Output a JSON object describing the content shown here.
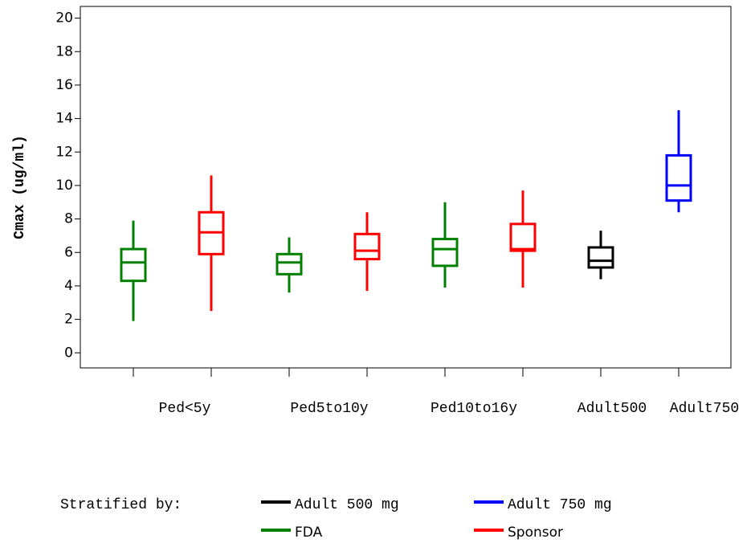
{
  "chart_data": {
    "type": "box",
    "y_label": "Cmax (ug/ml)",
    "categories": [
      null,
      null,
      null,
      null,
      null,
      null,
      null,
      null
    ],
    "group_labels": [
      "Ped<5y",
      "Ped5to10y",
      "Ped10to16y",
      "Adult500",
      "Adult750"
    ],
    "ylim": [
      -0.9,
      20.7
    ],
    "yticks": [
      0,
      2,
      4,
      6,
      8,
      10,
      12,
      14,
      16,
      18,
      20
    ],
    "legend_title": "Stratified by:",
    "series": [
      {
        "name": "Adult 500 mg",
        "color": "#000000",
        "min": [
          null,
          null,
          null,
          null,
          null,
          null,
          4.4,
          null
        ],
        "q1": [
          null,
          null,
          null,
          null,
          null,
          null,
          5.1,
          null
        ],
        "median": [
          null,
          null,
          null,
          null,
          null,
          null,
          5.5,
          null
        ],
        "q3": [
          null,
          null,
          null,
          null,
          null,
          null,
          6.3,
          null
        ],
        "max": [
          null,
          null,
          null,
          null,
          null,
          null,
          7.3,
          null
        ]
      },
      {
        "name": "Adult 750 mg",
        "color": "#0000ff",
        "min": [
          null,
          null,
          null,
          null,
          null,
          null,
          null,
          8.4
        ],
        "q1": [
          null,
          null,
          null,
          null,
          null,
          null,
          null,
          9.1
        ],
        "median": [
          null,
          null,
          null,
          null,
          null,
          null,
          null,
          10.0
        ],
        "q3": [
          null,
          null,
          null,
          null,
          null,
          null,
          null,
          11.8
        ],
        "max": [
          null,
          null,
          null,
          null,
          null,
          null,
          null,
          14.5
        ]
      },
      {
        "name": "FDA",
        "color": "#008000",
        "min": [
          1.9,
          null,
          3.6,
          null,
          3.9,
          null,
          null,
          null
        ],
        "q1": [
          4.3,
          null,
          4.7,
          null,
          5.2,
          null,
          null,
          null
        ],
        "median": [
          5.4,
          null,
          5.4,
          null,
          6.2,
          null,
          null,
          null
        ],
        "q3": [
          6.2,
          null,
          5.9,
          null,
          6.8,
          null,
          null,
          null
        ],
        "max": [
          7.9,
          null,
          6.9,
          null,
          9.0,
          null,
          null,
          null
        ]
      },
      {
        "name": "Sponsor",
        "color": "#ff0000",
        "min": [
          null,
          2.5,
          null,
          3.7,
          null,
          3.9,
          null,
          null
        ],
        "q1": [
          null,
          5.9,
          null,
          5.6,
          null,
          6.1,
          null,
          null
        ],
        "median": [
          null,
          7.2,
          null,
          6.1,
          null,
          6.2,
          null,
          null
        ],
        "q3": [
          null,
          8.4,
          null,
          7.1,
          null,
          7.7,
          null,
          null
        ],
        "max": [
          null,
          10.6,
          null,
          8.4,
          null,
          9.7,
          null,
          null
        ]
      }
    ]
  }
}
